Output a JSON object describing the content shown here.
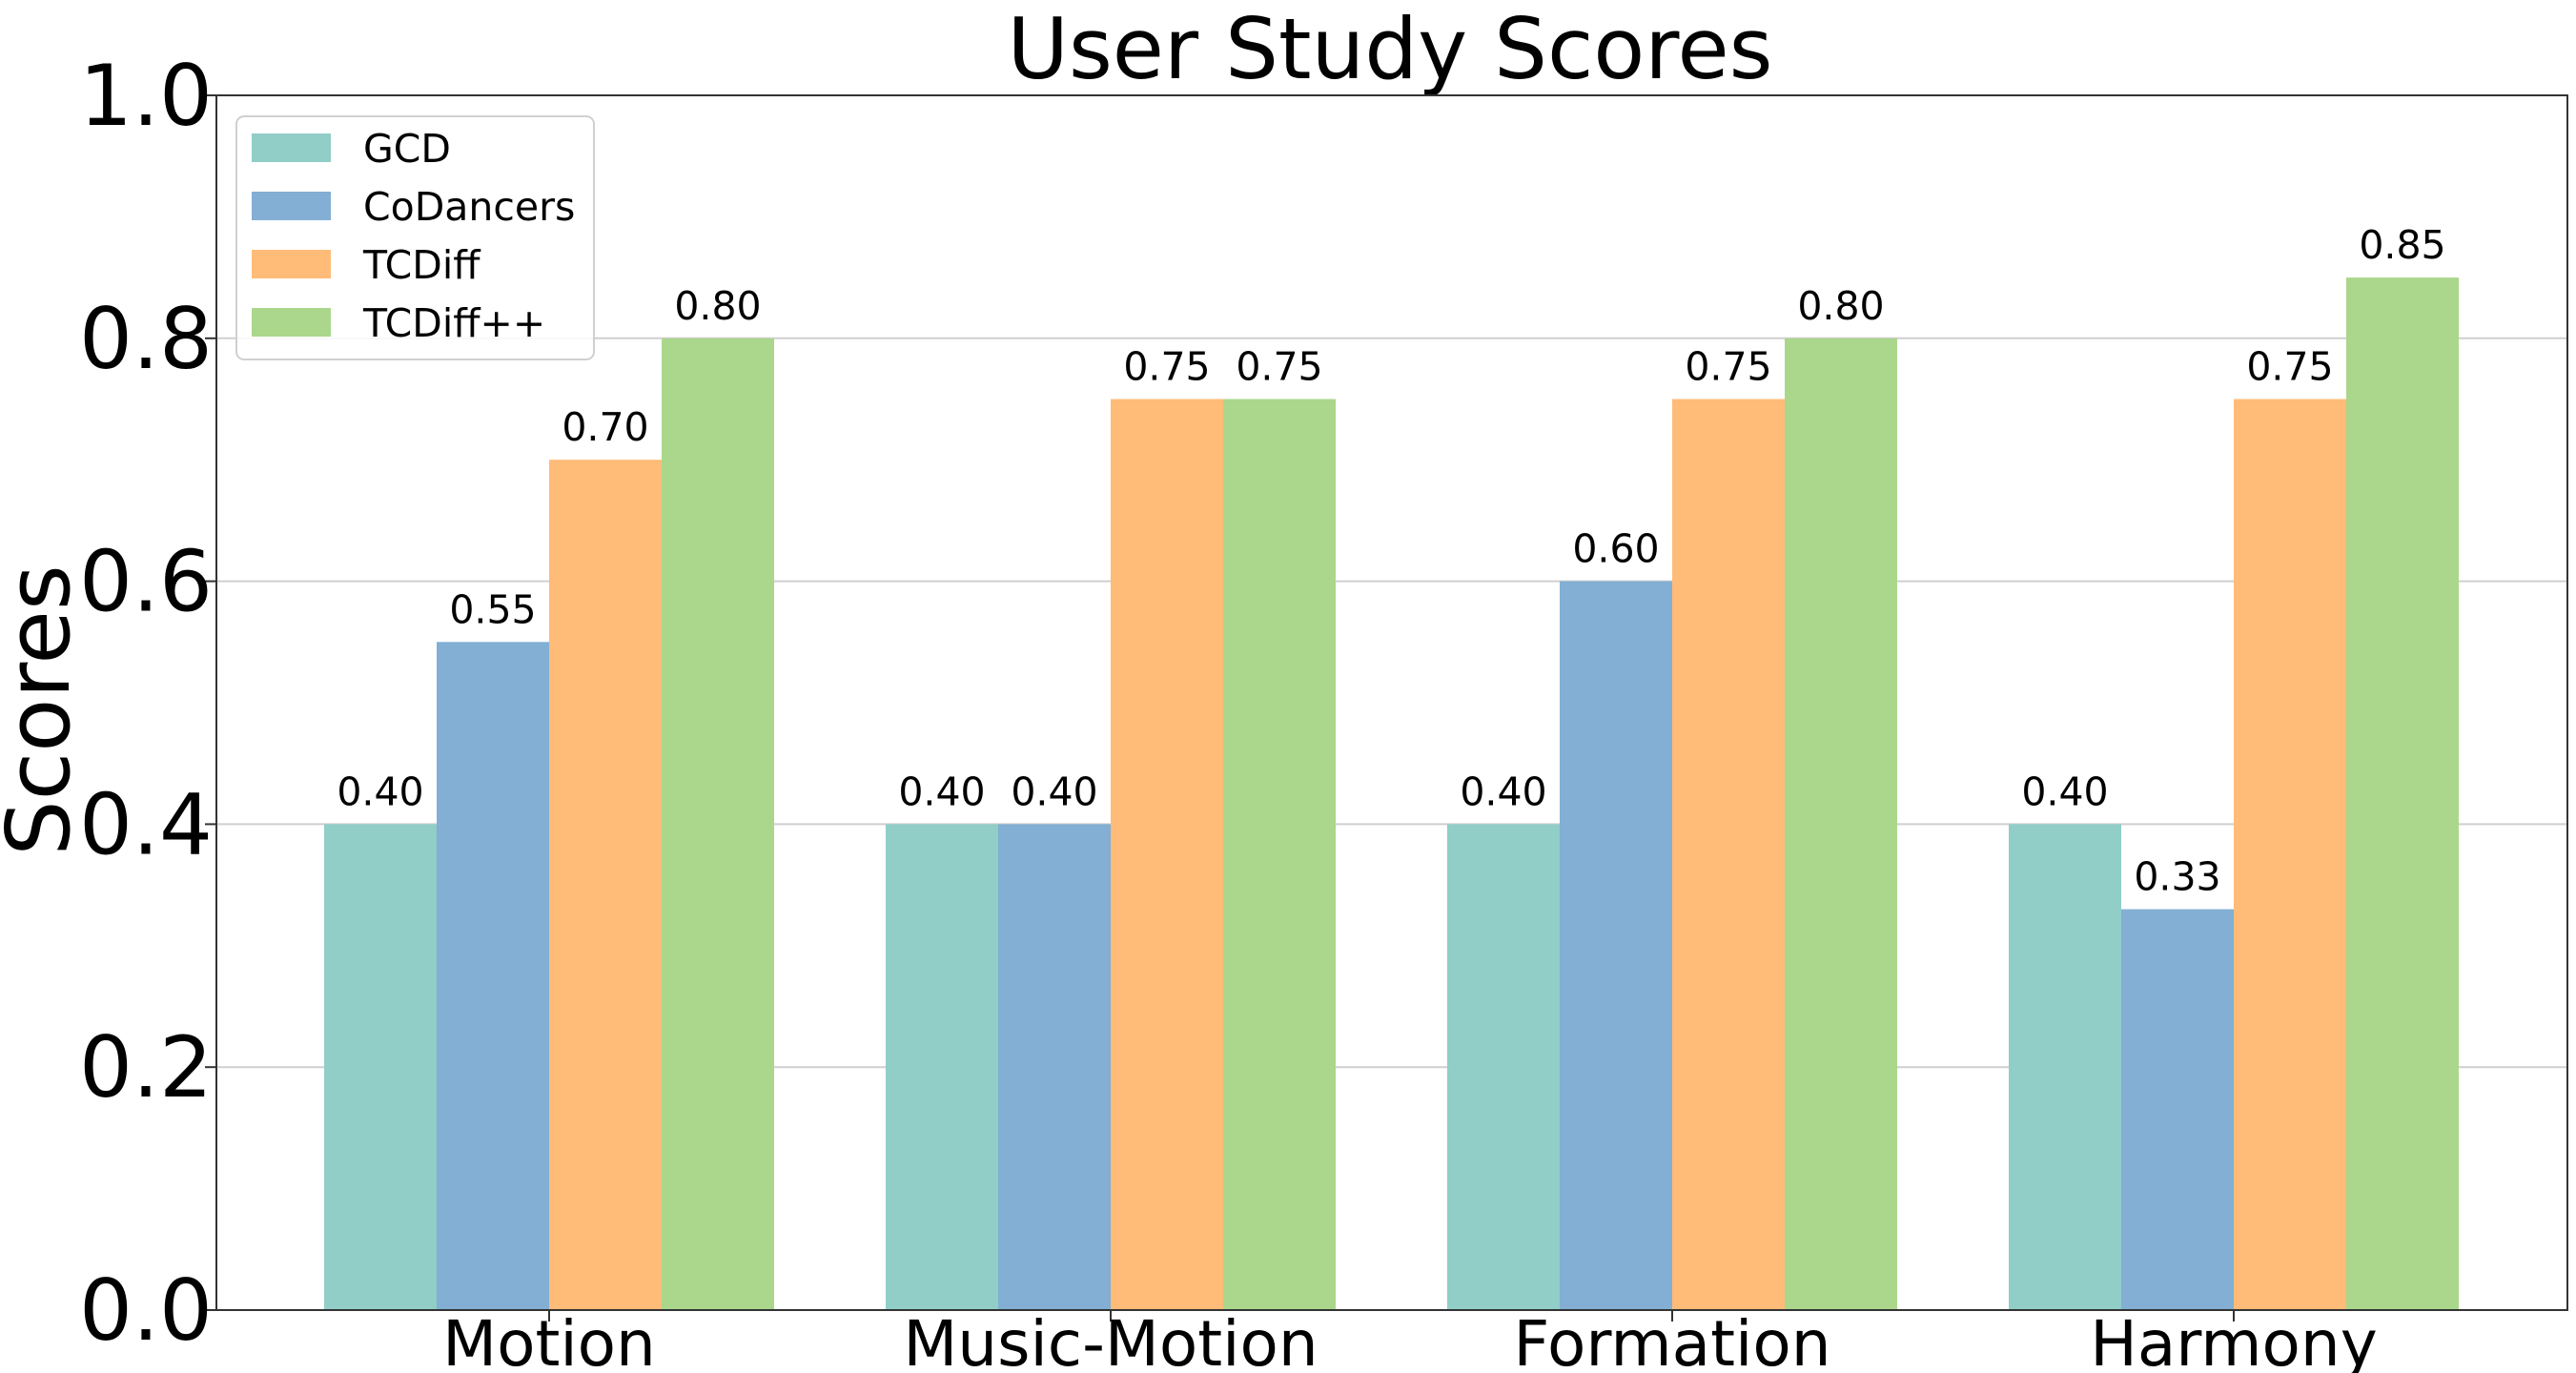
{
  "chart_data": {
    "type": "bar",
    "title": "User Study Scores",
    "xlabel": "",
    "ylabel": "Scores",
    "ylim": [
      0,
      1.0
    ],
    "yticks": [
      "0.0",
      "0.2",
      "0.4",
      "0.6",
      "0.8",
      "1.0"
    ],
    "grid": "y",
    "legend_position": "top-left",
    "categories": [
      "Motion",
      "Music-Motion",
      "Formation",
      "Harmony"
    ],
    "series": [
      {
        "name": "GCD",
        "color": "#90cec7",
        "values": [
          0.4,
          0.4,
          0.4,
          0.4
        ],
        "labels": [
          "0.40",
          "0.40",
          "0.40",
          "0.40"
        ]
      },
      {
        "name": "CoDancers",
        "color": "#82afd3",
        "values": [
          0.55,
          0.4,
          0.6,
          0.33
        ],
        "labels": [
          "0.55",
          "0.40",
          "0.60",
          "0.33"
        ]
      },
      {
        "name": "TCDiff",
        "color": "#ffbb78",
        "values": [
          0.7,
          0.75,
          0.75,
          0.75
        ],
        "labels": [
          "0.70",
          "0.75",
          "0.75",
          "0.75"
        ]
      },
      {
        "name": "TCDiff++",
        "color": "#aad78c",
        "values": [
          0.8,
          0.75,
          0.8,
          0.85
        ],
        "labels": [
          "0.80",
          "0.75",
          "0.80",
          "0.85"
        ]
      }
    ]
  }
}
